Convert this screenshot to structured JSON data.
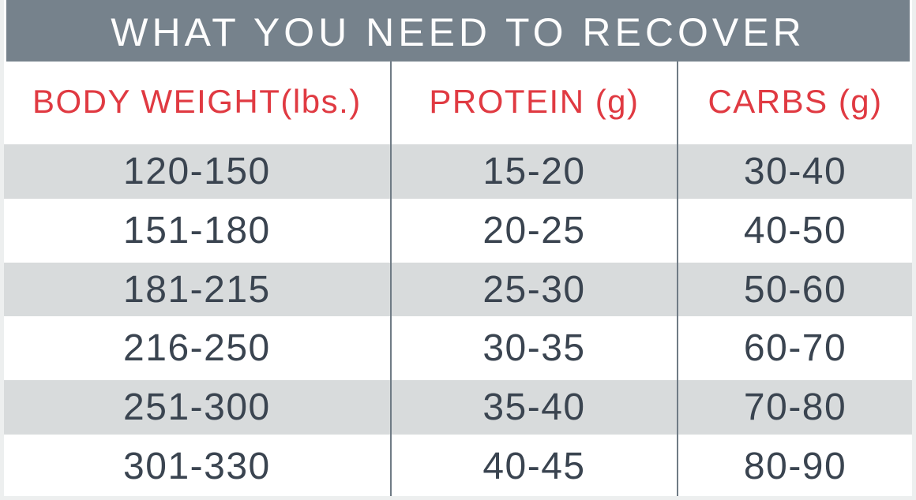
{
  "colors": {
    "title_bar": "#76828C",
    "title_text": "#FDFDFD",
    "header_text": "#E03A42",
    "data_text": "#3A4450",
    "stripe": "#D8DBDC",
    "frame": "#EDEFEF",
    "divider": "#6F7B85"
  },
  "chart_data": {
    "type": "table",
    "title": "WHAT YOU NEED TO RECOVER",
    "columns": [
      "BODY WEIGHT(lbs.)",
      "PROTEIN (g)",
      "CARBS (g)"
    ],
    "rows": [
      [
        "120-150",
        "15-20",
        "30-40"
      ],
      [
        "151-180",
        "20-25",
        "40-50"
      ],
      [
        "181-215",
        "25-30",
        "50-60"
      ],
      [
        "216-250",
        "30-35",
        "60-70"
      ],
      [
        "251-300",
        "35-40",
        "70-80"
      ],
      [
        "301-330",
        "40-45",
        "80-90"
      ]
    ],
    "layout": {
      "stripe_pattern": "odd rows gray, even rows white",
      "column_widths_pct": [
        42.5,
        31.6,
        25.9
      ],
      "dividers": "vertical lines between columns, header through last row"
    }
  }
}
